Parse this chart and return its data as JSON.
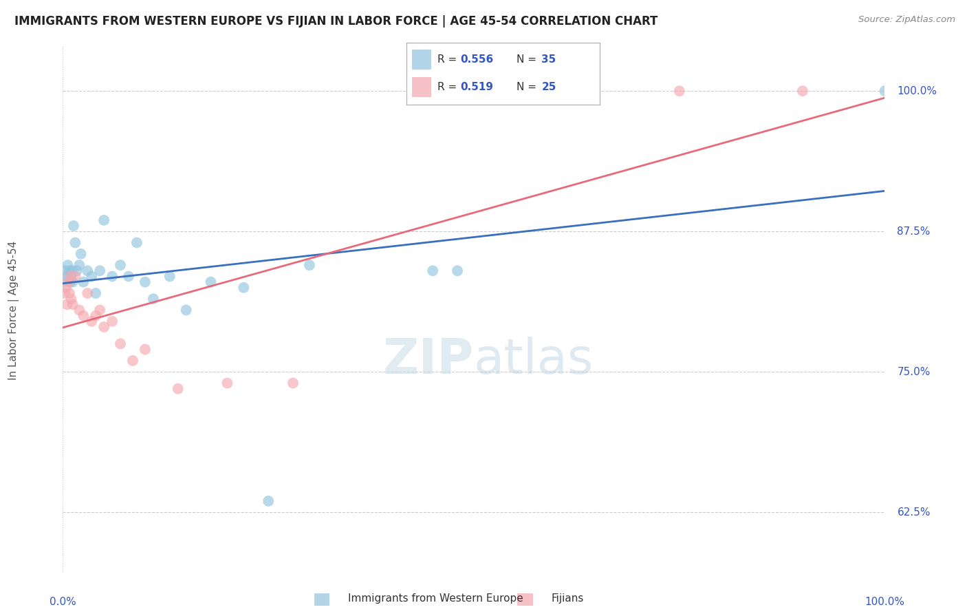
{
  "title": "IMMIGRANTS FROM WESTERN EUROPE VS FIJIAN IN LABOR FORCE | AGE 45-54 CORRELATION CHART",
  "source": "Source: ZipAtlas.com",
  "ylabel": "In Labor Force | Age 45-54",
  "legend_label1": "Immigrants from Western Europe",
  "legend_label2": "Fijians",
  "r_blue": 0.556,
  "n_blue": 35,
  "r_pink": 0.519,
  "n_pink": 25,
  "yticks": [
    62.5,
    75.0,
    87.5,
    100.0
  ],
  "blue_x": [
    0.2,
    0.3,
    0.5,
    0.6,
    0.8,
    0.9,
    1.0,
    1.1,
    1.2,
    1.3,
    1.5,
    1.7,
    2.0,
    2.2,
    2.5,
    3.0,
    3.5,
    4.0,
    4.5,
    5.0,
    6.0,
    7.0,
    8.0,
    9.0,
    10.0,
    11.0,
    13.0,
    15.0,
    18.0,
    22.0,
    25.0,
    30.0,
    45.0,
    48.0,
    100.0
  ],
  "blue_y": [
    83.0,
    84.0,
    83.5,
    84.5,
    84.0,
    83.0,
    83.5,
    84.0,
    83.0,
    88.0,
    86.5,
    84.0,
    84.5,
    85.5,
    83.0,
    84.0,
    83.5,
    82.0,
    84.0,
    88.5,
    83.5,
    84.5,
    83.5,
    86.5,
    83.0,
    81.5,
    83.5,
    80.5,
    83.0,
    82.5,
    63.5,
    84.5,
    84.0,
    84.0,
    100.0
  ],
  "pink_x": [
    0.2,
    0.4,
    0.5,
    0.7,
    0.8,
    0.9,
    1.0,
    1.2,
    1.5,
    2.0,
    2.5,
    3.0,
    3.5,
    4.0,
    4.5,
    5.0,
    6.0,
    7.0,
    8.5,
    10.0,
    14.0,
    20.0,
    28.0,
    75.0,
    90.0
  ],
  "pink_y": [
    82.0,
    82.5,
    81.0,
    83.0,
    82.0,
    83.5,
    81.5,
    81.0,
    83.5,
    80.5,
    80.0,
    82.0,
    79.5,
    80.0,
    80.5,
    79.0,
    79.5,
    77.5,
    76.0,
    77.0,
    73.5,
    74.0,
    74.0,
    100.0,
    100.0
  ],
  "watermark_zip": "ZIP",
  "watermark_atlas": "atlas",
  "background_color": "#ffffff",
  "blue_color": "#92c5de",
  "blue_line_color": "#3a6fbd",
  "pink_color": "#f4a9b0",
  "pink_line_color": "#e8697a",
  "grid_color": "#cccccc",
  "title_color": "#222222",
  "axis_label_color": "#555555",
  "legend_text_color": "#333333",
  "r_n_color": "#3355cc",
  "ylim": [
    57.0,
    104.0
  ],
  "xlim": [
    0.0,
    100.0
  ]
}
